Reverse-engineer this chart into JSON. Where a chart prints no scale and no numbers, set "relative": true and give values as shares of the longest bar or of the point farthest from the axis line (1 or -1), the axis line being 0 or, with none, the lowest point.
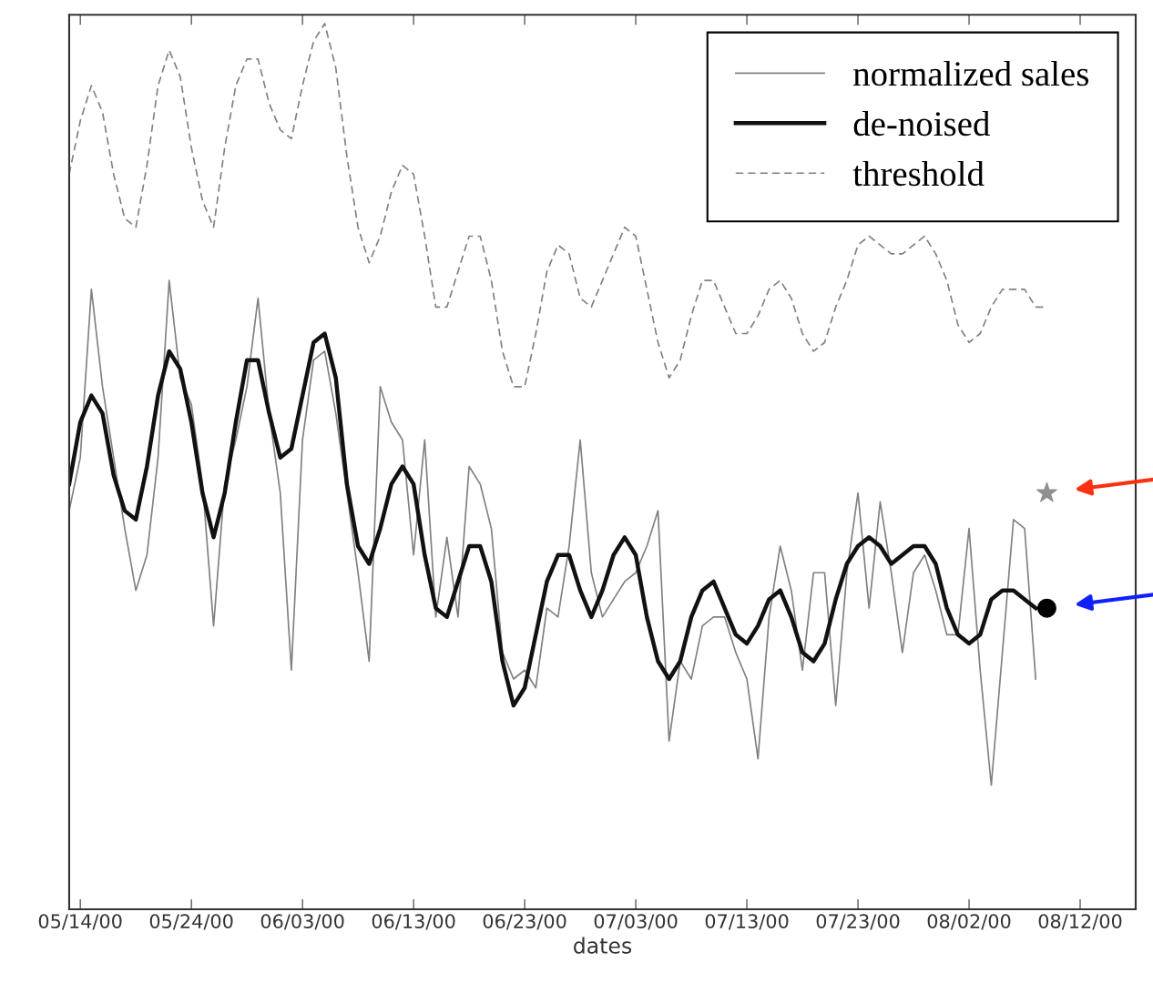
{
  "chart_data": {
    "type": "line",
    "relative": true,
    "xlabel": "dates",
    "x": [
      "2000-05-13",
      "2000-05-14",
      "2000-05-15",
      "2000-05-16",
      "2000-05-17",
      "2000-05-18",
      "2000-05-19",
      "2000-05-20",
      "2000-05-21",
      "2000-05-22",
      "2000-05-23",
      "2000-05-24",
      "2000-05-25",
      "2000-05-26",
      "2000-05-27",
      "2000-05-28",
      "2000-05-29",
      "2000-05-30",
      "2000-05-31",
      "2000-06-01",
      "2000-06-02",
      "2000-06-03",
      "2000-06-04",
      "2000-06-05",
      "2000-06-06",
      "2000-06-07",
      "2000-06-08",
      "2000-06-09",
      "2000-06-10",
      "2000-06-11",
      "2000-06-12",
      "2000-06-13",
      "2000-06-14",
      "2000-06-15",
      "2000-06-16",
      "2000-06-17",
      "2000-06-18",
      "2000-06-19",
      "2000-06-20",
      "2000-06-21",
      "2000-06-22",
      "2000-06-23",
      "2000-06-24",
      "2000-06-25",
      "2000-06-26",
      "2000-06-27",
      "2000-06-28",
      "2000-06-29",
      "2000-06-30",
      "2000-07-01",
      "2000-07-02",
      "2000-07-03",
      "2000-07-04",
      "2000-07-05",
      "2000-07-06",
      "2000-07-07",
      "2000-07-08",
      "2000-07-09",
      "2000-07-10",
      "2000-07-11",
      "2000-07-12",
      "2000-07-13",
      "2000-07-14",
      "2000-07-15",
      "2000-07-16",
      "2000-07-17",
      "2000-07-18",
      "2000-07-19",
      "2000-07-20",
      "2000-07-21",
      "2000-07-22",
      "2000-07-23",
      "2000-07-24",
      "2000-07-25",
      "2000-07-26",
      "2000-07-27",
      "2000-07-28",
      "2000-07-29",
      "2000-07-30",
      "2000-07-31",
      "2000-08-01",
      "2000-08-02",
      "2000-08-03",
      "2000-08-04",
      "2000-08-05",
      "2000-08-06",
      "2000-08-07",
      "2000-08-08",
      "2000-08-09"
    ],
    "series": [
      {
        "name": "normalized sales",
        "color": "#808080",
        "line_style": "solid",
        "values": [
          0.45,
          0.51,
          0.7,
          0.59,
          0.51,
          0.43,
          0.36,
          0.4,
          0.51,
          0.71,
          0.6,
          0.57,
          0.48,
          0.32,
          0.48,
          0.53,
          0.59,
          0.69,
          0.56,
          0.47,
          0.27,
          0.53,
          0.62,
          0.63,
          0.56,
          0.47,
          0.38,
          0.28,
          0.59,
          0.55,
          0.53,
          0.4,
          0.53,
          0.33,
          0.42,
          0.33,
          0.5,
          0.48,
          0.43,
          0.29,
          0.26,
          0.27,
          0.25,
          0.34,
          0.33,
          0.41,
          0.53,
          0.38,
          0.33,
          0.35,
          0.37,
          0.38,
          0.41,
          0.45,
          0.19,
          0.28,
          0.26,
          0.32,
          0.33,
          0.33,
          0.29,
          0.26,
          0.17,
          0.33,
          0.41,
          0.36,
          0.27,
          0.38,
          0.38,
          0.23,
          0.38,
          0.47,
          0.34,
          0.46,
          0.38,
          0.29,
          0.38,
          0.4,
          0.36,
          0.31,
          0.31,
          0.43,
          0.27,
          0.14,
          0.29,
          0.44,
          0.43,
          0.26,
          null
        ]
      },
      {
        "name": "de-noised",
        "color": "#111111",
        "line_style": "solid",
        "values": [
          0.48,
          0.55,
          0.58,
          0.56,
          0.49,
          0.45,
          0.44,
          0.5,
          0.58,
          0.63,
          0.61,
          0.55,
          0.47,
          0.42,
          0.47,
          0.55,
          0.62,
          0.62,
          0.56,
          0.51,
          0.52,
          0.58,
          0.64,
          0.65,
          0.6,
          0.48,
          0.41,
          0.39,
          0.43,
          0.48,
          0.5,
          0.48,
          0.4,
          0.34,
          0.33,
          0.37,
          0.41,
          0.41,
          0.37,
          0.28,
          0.23,
          0.25,
          0.31,
          0.37,
          0.4,
          0.4,
          0.36,
          0.33,
          0.36,
          0.4,
          0.42,
          0.4,
          0.33,
          0.28,
          0.26,
          0.28,
          0.33,
          0.36,
          0.37,
          0.34,
          0.31,
          0.3,
          0.32,
          0.35,
          0.36,
          0.33,
          0.29,
          0.28,
          0.3,
          0.35,
          0.39,
          0.41,
          0.42,
          0.41,
          0.39,
          0.4,
          0.41,
          0.41,
          0.39,
          0.34,
          0.31,
          0.3,
          0.31,
          0.35,
          0.36,
          0.36,
          0.35,
          0.34,
          null
        ]
      },
      {
        "name": "threshold",
        "color": "#808080",
        "line_style": "dashed",
        "values": [
          0.83,
          0.89,
          0.93,
          0.9,
          0.83,
          0.78,
          0.77,
          0.84,
          0.93,
          0.97,
          0.94,
          0.86,
          0.8,
          0.77,
          0.86,
          0.93,
          0.96,
          0.96,
          0.91,
          0.88,
          0.87,
          0.93,
          0.98,
          1.0,
          0.95,
          0.85,
          0.77,
          0.73,
          0.76,
          0.81,
          0.84,
          0.83,
          0.76,
          0.68,
          0.68,
          0.72,
          0.76,
          0.76,
          0.71,
          0.63,
          0.59,
          0.59,
          0.65,
          0.72,
          0.75,
          0.74,
          0.69,
          0.68,
          0.71,
          0.74,
          0.77,
          0.76,
          0.7,
          0.64,
          0.6,
          0.62,
          0.67,
          0.71,
          0.71,
          0.68,
          0.65,
          0.65,
          0.67,
          0.7,
          0.71,
          0.69,
          0.65,
          0.63,
          0.64,
          0.68,
          0.71,
          0.75,
          0.76,
          0.75,
          0.74,
          0.74,
          0.75,
          0.76,
          0.74,
          0.71,
          0.66,
          0.64,
          0.65,
          0.68,
          0.7,
          0.7,
          0.7,
          0.68,
          0.68
        ]
      },
      {
        "type": "scatter",
        "color": "#909090",
        "marker": "star",
        "x": [
          "2000-08-09"
        ],
        "values": [
          0.47
        ]
      },
      {
        "type": "scatter",
        "color": "#000000",
        "marker": "circle",
        "x": [
          "2000-08-09"
        ],
        "values": [
          0.34
        ]
      }
    ],
    "xlim": [
      "2000-05-13",
      "2000-08-17"
    ],
    "xticks": [
      {
        "value": "2000-05-14",
        "label": "05/14/00"
      },
      {
        "value": "2000-05-24",
        "label": "05/24/00"
      },
      {
        "value": "2000-06-03",
        "label": "06/03/00"
      },
      {
        "value": "2000-06-13",
        "label": "06/13/00"
      },
      {
        "value": "2000-06-23",
        "label": "06/23/00"
      },
      {
        "value": "2000-07-03",
        "label": "07/03/00"
      },
      {
        "value": "2000-07-13",
        "label": "07/13/00"
      },
      {
        "value": "2000-07-23",
        "label": "07/23/00"
      },
      {
        "value": "2000-08-02",
        "label": "08/02/00"
      },
      {
        "value": "2000-08-12",
        "label": "08/12/00"
      }
    ],
    "grid": false,
    "legend": "top right"
  }
}
